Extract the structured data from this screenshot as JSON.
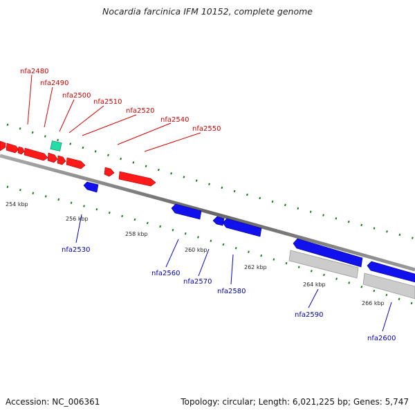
{
  "title": "Nocardia farcinica IFM 10152, complete genome",
  "footer": {
    "accession": "Accession: NC_006361",
    "summary": "Topology: circular; Length: 6,021,225 bp; Genes: 5,747"
  },
  "colors": {
    "forward_gene": "#ff0000",
    "reverse_gene": "#0000ee",
    "rna_gene": "#22ddaa",
    "pseudo_region": "#c8c8c8",
    "backbone": "#777777",
    "tick_marks": "#1a7a1a",
    "forward_label": "#cc0000",
    "reverse_label": "#0000aa"
  },
  "forward_labels": [
    "nfa2480",
    "nfa2490",
    "nfa2500",
    "nfa2510",
    "nfa2520",
    "nfa2540",
    "nfa2550"
  ],
  "reverse_labels": [
    "nfa2530",
    "nfa2560",
    "nfa2570",
    "nfa2580",
    "nfa2590",
    "nfa2600"
  ],
  "scale_labels": [
    "254 kbp",
    "256 kbp",
    "258 kbp",
    "260 kbp",
    "262 kbp",
    "264 kbp",
    "266 kbp"
  ]
}
